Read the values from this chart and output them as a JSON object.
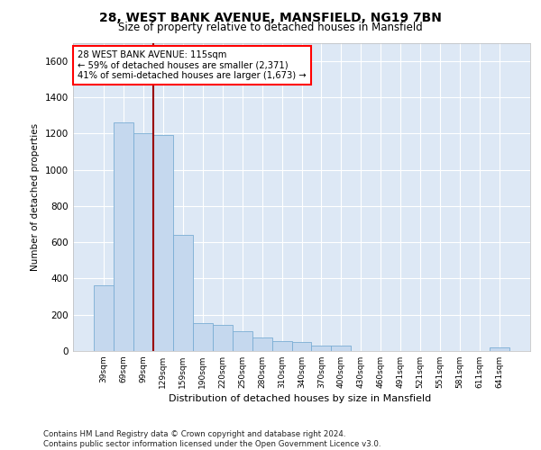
{
  "title_line1": "28, WEST BANK AVENUE, MANSFIELD, NG19 7BN",
  "title_line2": "Size of property relative to detached houses in Mansfield",
  "xlabel": "Distribution of detached houses by size in Mansfield",
  "ylabel": "Number of detached properties",
  "footer": "Contains HM Land Registry data © Crown copyright and database right 2024.\nContains public sector information licensed under the Open Government Licence v3.0.",
  "annotation_title": "28 WEST BANK AVENUE: 115sqm",
  "annotation_line2": "← 59% of detached houses are smaller (2,371)",
  "annotation_line3": "41% of semi-detached houses are larger (1,673) →",
  "bar_color": "#c5d8ee",
  "bar_edge_color": "#7aadd4",
  "vline_color": "#990000",
  "vline_x": 2.5,
  "background_color": "#dde8f5",
  "categories": [
    "39sqm",
    "69sqm",
    "99sqm",
    "129sqm",
    "159sqm",
    "190sqm",
    "220sqm",
    "250sqm",
    "280sqm",
    "310sqm",
    "340sqm",
    "370sqm",
    "400sqm",
    "430sqm",
    "460sqm",
    "491sqm",
    "521sqm",
    "551sqm",
    "581sqm",
    "611sqm",
    "641sqm"
  ],
  "values": [
    360,
    1260,
    1200,
    1190,
    640,
    155,
    145,
    110,
    75,
    55,
    50,
    30,
    30,
    0,
    0,
    0,
    0,
    0,
    0,
    0,
    20
  ],
  "ylim": [
    0,
    1700
  ],
  "yticks": [
    0,
    200,
    400,
    600,
    800,
    1000,
    1200,
    1400,
    1600
  ]
}
